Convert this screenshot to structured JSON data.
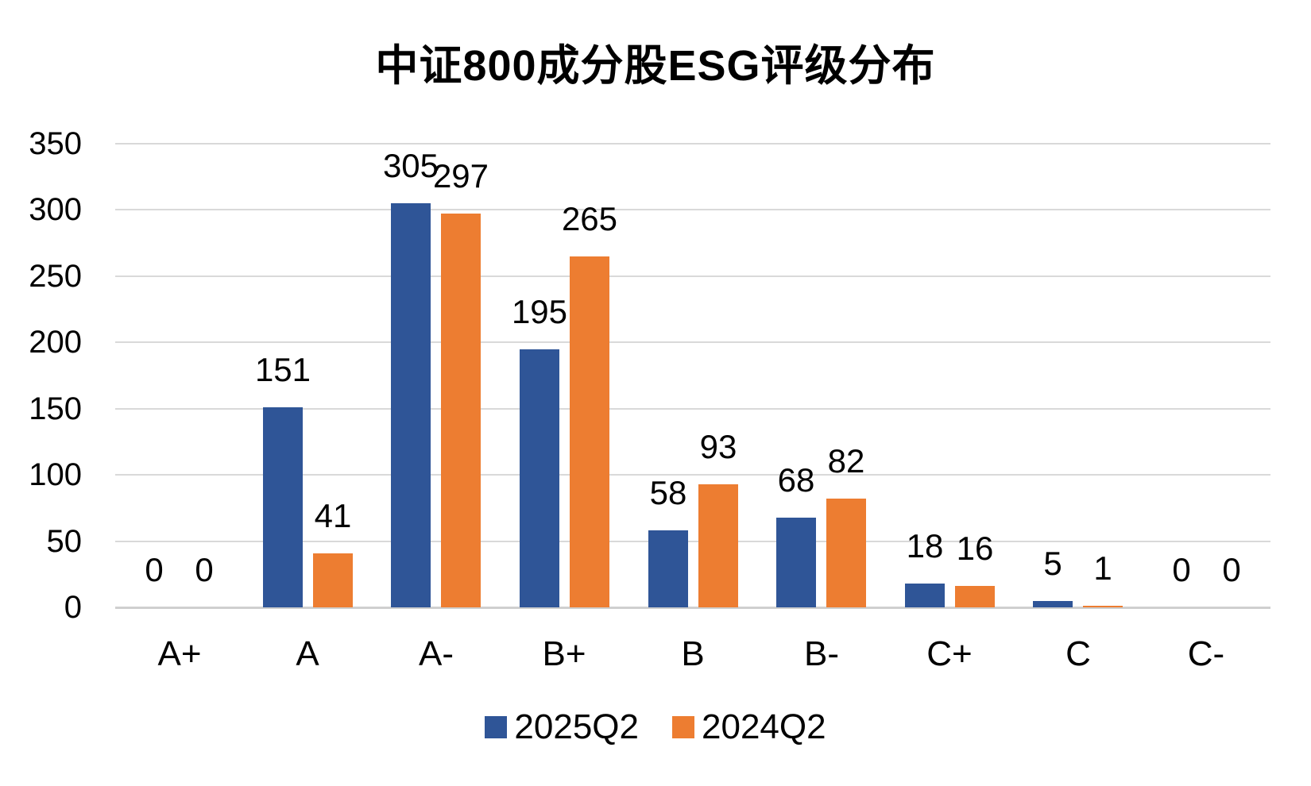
{
  "chart": {
    "title": "中证800成分股ESG评级分布",
    "colors": {
      "series_2025Q2": "#2F5597",
      "series_2024Q2": "#ED7D31",
      "gridline": "#D9D9D9",
      "baseline": "#CFCFCF",
      "text": "#000000",
      "background": "#FFFFFF"
    },
    "legend": {
      "items": [
        {
          "label": "2025Q2",
          "color": "#2F5597"
        },
        {
          "label": "2024Q2",
          "color": "#ED7D31"
        }
      ],
      "position": "bottom"
    }
  },
  "chart_data": {
    "type": "bar",
    "title": "中证800成分股ESG评级分布",
    "categories": [
      "A+",
      "A",
      "A-",
      "B+",
      "B",
      "B-",
      "C+",
      "C",
      "C-"
    ],
    "series": [
      {
        "name": "2025Q2",
        "color": "#2F5597",
        "values": [
          0,
          151,
          305,
          195,
          58,
          68,
          18,
          5,
          0
        ]
      },
      {
        "name": "2024Q2",
        "color": "#ED7D31",
        "values": [
          0,
          41,
          297,
          265,
          93,
          82,
          16,
          1,
          0
        ]
      }
    ],
    "xlabel": "",
    "ylabel": "",
    "ylim": [
      0,
      350
    ],
    "yticks": [
      0,
      50,
      100,
      150,
      200,
      250,
      300,
      350
    ],
    "grid": true,
    "data_labels": true,
    "legend_position": "bottom"
  }
}
